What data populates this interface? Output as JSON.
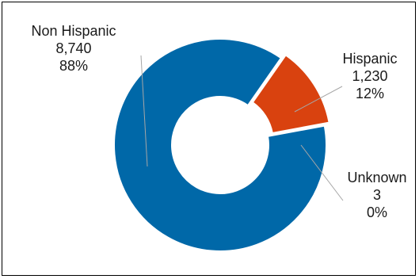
{
  "chart_data": {
    "type": "pie",
    "subtype": "donut",
    "title": "",
    "legend": "none",
    "slices": [
      {
        "name": "Hispanic",
        "value": 1230,
        "value_label": "1,230",
        "percent_label": "12%",
        "color": "#D9420F"
      },
      {
        "name": "Unknown",
        "value": 3,
        "value_label": "3",
        "percent_label": "0%",
        "color": "#1F4E79"
      },
      {
        "name": "Non Hispanic",
        "value": 8740,
        "value_label": "8,740",
        "percent_label": "88%",
        "color": "#0068A8"
      }
    ]
  }
}
